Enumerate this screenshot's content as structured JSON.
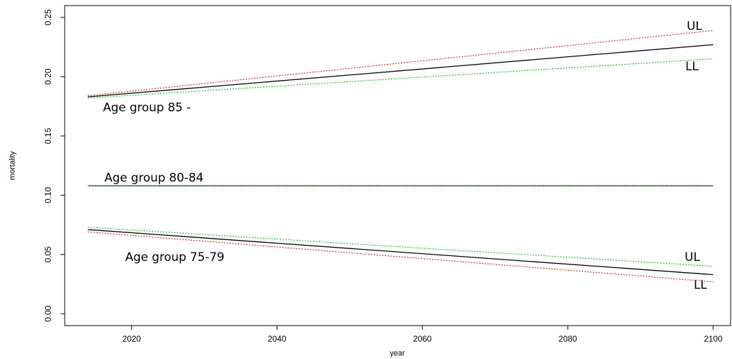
{
  "chart_data": {
    "type": "line",
    "x_label": "year",
    "y_label": "mortality",
    "x": [
      2014,
      2100
    ],
    "series": [
      {
        "color": "#000000",
        "linestyle": "solid",
        "values": [
          0.183,
          0.227
        ]
      },
      {
        "color": "#ff0000",
        "linestyle": "dotted",
        "values": [
          0.184,
          0.239
        ]
      },
      {
        "color": "#00bb00",
        "linestyle": "dotted",
        "values": [
          0.182,
          0.215
        ]
      },
      {
        "color": "#000000",
        "linestyle": "solid",
        "values": [
          0.108,
          0.108
        ]
      },
      {
        "color": "#ff0000",
        "linestyle": "dotted",
        "values": [
          0.108,
          0.108
        ]
      },
      {
        "color": "#00bb00",
        "linestyle": "dotted",
        "values": [
          0.108,
          0.108
        ]
      },
      {
        "color": "#000000",
        "linestyle": "solid",
        "values": [
          0.071,
          0.033
        ]
      },
      {
        "color": "#00bb00",
        "linestyle": "dotted",
        "values": [
          0.073,
          0.04
        ]
      },
      {
        "color": "#ff0000",
        "linestyle": "dotted",
        "values": [
          0.069,
          0.027
        ]
      }
    ],
    "annotations": [
      "UL",
      "LL",
      "Age group 85 -",
      "Age group 80-84",
      "Age group 75-79",
      "UL",
      "LL"
    ],
    "xlim": [
      2010.8,
      2102.4
    ],
    "xticks": [
      2020,
      2040,
      2060,
      2080,
      2100
    ],
    "ylim": [
      -0.01,
      0.26
    ],
    "yticks": [
      {
        "value": 0,
        "label": "0.00"
      },
      0.05,
      {
        "value": 0.1,
        "label": "0.10"
      },
      0.15,
      {
        "value": 0.2,
        "label": "0.20"
      },
      0.25
    ],
    "grid": false
  }
}
